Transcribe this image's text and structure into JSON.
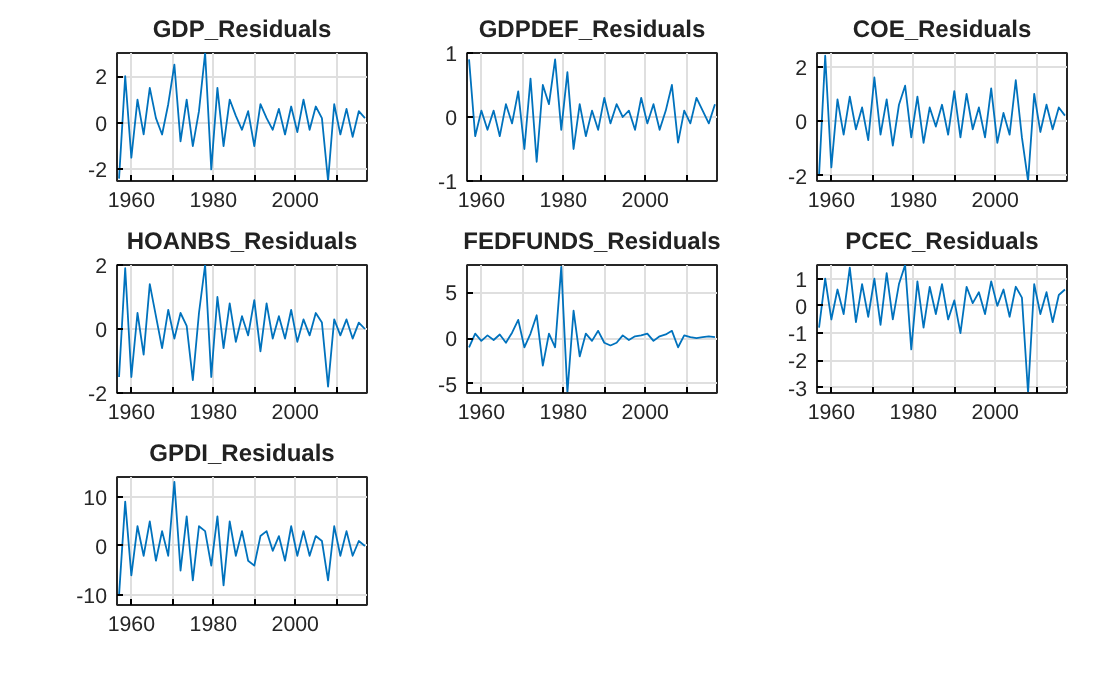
{
  "chart_data": [
    {
      "type": "line",
      "title": "GDP_Residuals",
      "x": [
        1957,
        1958.5,
        1960,
        1961.5,
        1963,
        1964.5,
        1966,
        1967.5,
        1969,
        1970.5,
        1972,
        1973.5,
        1975,
        1976.5,
        1978,
        1979.5,
        1981,
        1982.5,
        1984,
        1985.5,
        1987,
        1988.5,
        1990,
        1991.5,
        1993,
        1994.5,
        1996,
        1997.5,
        1999,
        2000.5,
        2002,
        2003.5,
        2005,
        2006.5,
        2008,
        2009.5,
        2011,
        2012.5,
        2014,
        2015.5,
        2017
      ],
      "series": [
        {
          "color": "#0072bd",
          "values": [
            -2.4,
            2,
            -1.5,
            1,
            -0.5,
            1.5,
            0.2,
            -0.5,
            0.8,
            2.5,
            -0.8,
            1,
            -1,
            0.5,
            3,
            -2,
            1.5,
            -1,
            1,
            0.3,
            -0.3,
            0.5,
            -1,
            0.8,
            0.2,
            -0.3,
            0.6,
            -0.5,
            0.7,
            -0.4,
            1,
            -0.3,
            0.7,
            0.2,
            -2.5,
            0.8,
            -0.5,
            0.6,
            -0.6,
            0.5,
            0.2
          ]
        }
      ],
      "xlim": [
        1956.5,
        2017.5
      ],
      "ylim": [
        -2.5,
        3
      ],
      "yticks": [
        -2,
        0,
        2
      ],
      "xticks": [
        1960,
        {
          "value": 1970,
          "label": null
        },
        1980,
        {
          "value": 1990,
          "label": null
        },
        2000,
        {
          "value": 2010,
          "label": null
        }
      ],
      "grid": true,
      "line_style": "solid",
      "marker": "none"
    },
    {
      "type": "line",
      "title": "GDPDEF_Residuals",
      "x": [
        1957,
        1958.5,
        1960,
        1961.5,
        1963,
        1964.5,
        1966,
        1967.5,
        1969,
        1970.5,
        1972,
        1973.5,
        1975,
        1976.5,
        1978,
        1979.5,
        1981,
        1982.5,
        1984,
        1985.5,
        1987,
        1988.5,
        1990,
        1991.5,
        1993,
        1994.5,
        1996,
        1997.5,
        1999,
        2000.5,
        2002,
        2003.5,
        2005,
        2006.5,
        2008,
        2009.5,
        2011,
        2012.5,
        2014,
        2015.5,
        2017
      ],
      "series": [
        {
          "color": "#0072bd",
          "values": [
            0.9,
            -0.3,
            0.1,
            -0.2,
            0.1,
            -0.3,
            0.2,
            -0.1,
            0.4,
            -0.5,
            0.6,
            -0.7,
            0.5,
            0.2,
            0.9,
            -0.2,
            0.7,
            -0.5,
            0.2,
            -0.3,
            0.1,
            -0.2,
            0.3,
            -0.1,
            0.2,
            0,
            0.1,
            -0.2,
            0.3,
            -0.1,
            0.2,
            -0.2,
            0.1,
            0.5,
            -0.4,
            0.1,
            -0.1,
            0.3,
            0.1,
            -0.1,
            0.2
          ]
        }
      ],
      "xlim": [
        1956.5,
        2017.5
      ],
      "ylim": [
        -1,
        1
      ],
      "yticks": [
        -1,
        0,
        1
      ],
      "xticks": [
        1960,
        {
          "value": 1970,
          "label": null
        },
        1980,
        {
          "value": 1990,
          "label": null
        },
        2000,
        {
          "value": 2010,
          "label": null
        }
      ],
      "grid": true,
      "line_style": "solid",
      "marker": "none"
    },
    {
      "type": "line",
      "title": "COE_Residuals",
      "x": [
        1957,
        1958.5,
        1960,
        1961.5,
        1963,
        1964.5,
        1966,
        1967.5,
        1969,
        1970.5,
        1972,
        1973.5,
        1975,
        1976.5,
        1978,
        1979.5,
        1981,
        1982.5,
        1984,
        1985.5,
        1987,
        1988.5,
        1990,
        1991.5,
        1993,
        1994.5,
        1996,
        1997.5,
        1999,
        2000.5,
        2002,
        2003.5,
        2005,
        2006.5,
        2008,
        2009.5,
        2011,
        2012.5,
        2014,
        2015.5,
        2017
      ],
      "series": [
        {
          "color": "#0072bd",
          "values": [
            -2,
            2.4,
            -1.7,
            0.8,
            -0.5,
            0.9,
            -0.3,
            0.5,
            -0.7,
            1.6,
            -0.5,
            0.8,
            -0.9,
            0.6,
            1.3,
            -0.6,
            0.9,
            -0.8,
            0.5,
            -0.2,
            0.6,
            -0.5,
            1.1,
            -0.6,
            1,
            -0.3,
            0.5,
            -0.6,
            1.2,
            -0.8,
            0.3,
            -0.5,
            1.5,
            -0.6,
            -2.2,
            1,
            -0.4,
            0.6,
            -0.3,
            0.5,
            0.2
          ]
        }
      ],
      "xlim": [
        1956.5,
        2017.5
      ],
      "ylim": [
        -2.2,
        2.5
      ],
      "yticks": [
        -2,
        0,
        2
      ],
      "xticks": [
        1960,
        {
          "value": 1970,
          "label": null
        },
        1980,
        {
          "value": 1990,
          "label": null
        },
        2000,
        {
          "value": 2010,
          "label": null
        }
      ],
      "grid": true,
      "line_style": "solid",
      "marker": "none"
    },
    {
      "type": "line",
      "title": "HOANBS_Residuals",
      "x": [
        1957,
        1958.5,
        1960,
        1961.5,
        1963,
        1964.5,
        1966,
        1967.5,
        1969,
        1970.5,
        1972,
        1973.5,
        1975,
        1976.5,
        1978,
        1979.5,
        1981,
        1982.5,
        1984,
        1985.5,
        1987,
        1988.5,
        1990,
        1991.5,
        1993,
        1994.5,
        1996,
        1997.5,
        1999,
        2000.5,
        2002,
        2003.5,
        2005,
        2006.5,
        2008,
        2009.5,
        2011,
        2012.5,
        2014,
        2015.5,
        2017
      ],
      "series": [
        {
          "color": "#0072bd",
          "values": [
            -1.5,
            1.9,
            -1.5,
            0.5,
            -0.8,
            1.4,
            0.4,
            -0.6,
            0.6,
            -0.3,
            0.5,
            0.1,
            -1.6,
            0.5,
            2,
            -1.5,
            1,
            -0.6,
            0.8,
            -0.4,
            0.4,
            -0.2,
            0.9,
            -0.7,
            0.8,
            -0.3,
            0.4,
            -0.3,
            0.6,
            -0.4,
            0.3,
            -0.2,
            0.5,
            0.2,
            -1.8,
            0.3,
            -0.2,
            0.3,
            -0.3,
            0.2,
            0
          ]
        }
      ],
      "xlim": [
        1956.5,
        2017.5
      ],
      "ylim": [
        -2,
        2
      ],
      "yticks": [
        -2,
        0,
        2
      ],
      "xticks": [
        1960,
        {
          "value": 1970,
          "label": null
        },
        1980,
        {
          "value": 1990,
          "label": null
        },
        2000,
        {
          "value": 2010,
          "label": null
        }
      ],
      "grid": true,
      "line_style": "solid",
      "marker": "none"
    },
    {
      "type": "line",
      "title": "FEDFUNDS_Residuals",
      "x": [
        1957,
        1958.5,
        1960,
        1961.5,
        1963,
        1964.5,
        1966,
        1967.5,
        1969,
        1970.5,
        1972,
        1973.5,
        1975,
        1976.5,
        1978,
        1979.5,
        1981,
        1982.5,
        1984,
        1985.5,
        1987,
        1988.5,
        1990,
        1991.5,
        1993,
        1994.5,
        1996,
        1997.5,
        1999,
        2000.5,
        2002,
        2003.5,
        2005,
        2006.5,
        2008,
        2009.5,
        2011,
        2012.5,
        2014,
        2015.5,
        2017
      ],
      "series": [
        {
          "color": "#0072bd",
          "values": [
            -1,
            0.5,
            -0.3,
            0.3,
            -0.2,
            0.4,
            -0.5,
            0.6,
            2,
            -1,
            0.5,
            2.5,
            -3,
            0.5,
            -1,
            7.8,
            -6,
            3,
            -2,
            0.5,
            -0.3,
            0.8,
            -0.5,
            -0.8,
            -0.5,
            0.3,
            -0.2,
            0.2,
            0.3,
            0.5,
            -0.3,
            0.2,
            0.4,
            0.8,
            -1,
            0.3,
            0.1,
            0,
            0.1,
            0.2,
            0.1
          ]
        }
      ],
      "xlim": [
        1956.5,
        2017.5
      ],
      "ylim": [
        -6,
        8
      ],
      "yticks": [
        -5,
        0,
        5
      ],
      "xticks": [
        1960,
        {
          "value": 1970,
          "label": null
        },
        1980,
        {
          "value": 1990,
          "label": null
        },
        2000,
        {
          "value": 2010,
          "label": null
        }
      ],
      "grid": true,
      "line_style": "solid",
      "marker": "none"
    },
    {
      "type": "line",
      "title": "PCEC_Residuals",
      "x": [
        1957,
        1958.5,
        1960,
        1961.5,
        1963,
        1964.5,
        1966,
        1967.5,
        1969,
        1970.5,
        1972,
        1973.5,
        1975,
        1976.5,
        1978,
        1979.5,
        1981,
        1982.5,
        1984,
        1985.5,
        1987,
        1988.5,
        1990,
        1991.5,
        1993,
        1994.5,
        1996,
        1997.5,
        1999,
        2000.5,
        2002,
        2003.5,
        2005,
        2006.5,
        2008,
        2009.5,
        2011,
        2012.5,
        2014,
        2015.5,
        2017
      ],
      "series": [
        {
          "color": "#0072bd",
          "values": [
            -0.8,
            1,
            -0.5,
            0.6,
            -0.3,
            1.4,
            -0.6,
            0.8,
            -0.4,
            1,
            -0.7,
            1.2,
            -0.5,
            0.8,
            1.5,
            -1.6,
            0.9,
            -0.8,
            0.7,
            -0.3,
            0.8,
            -0.5,
            0.2,
            -1,
            0.7,
            0.1,
            0.5,
            -0.3,
            0.9,
            0,
            0.6,
            -0.4,
            0.7,
            0.3,
            -3.2,
            0.8,
            -0.3,
            0.5,
            -0.6,
            0.4,
            0.6
          ]
        }
      ],
      "xlim": [
        1956.5,
        2017.5
      ],
      "ylim": [
        -3.2,
        1.5
      ],
      "yticks": [
        -3,
        -2,
        -1,
        0,
        1
      ],
      "xticks": [
        1960,
        {
          "value": 1970,
          "label": null
        },
        1980,
        {
          "value": 1990,
          "label": null
        },
        2000,
        {
          "value": 2010,
          "label": null
        }
      ],
      "grid": true,
      "line_style": "solid",
      "marker": "none"
    },
    {
      "type": "line",
      "title": "GPDI_Residuals",
      "x": [
        1957,
        1958.5,
        1960,
        1961.5,
        1963,
        1964.5,
        1966,
        1967.5,
        1969,
        1970.5,
        1972,
        1973.5,
        1975,
        1976.5,
        1978,
        1979.5,
        1981,
        1982.5,
        1984,
        1985.5,
        1987,
        1988.5,
        1990,
        1991.5,
        1993,
        1994.5,
        1996,
        1997.5,
        1999,
        2000.5,
        2002,
        2003.5,
        2005,
        2006.5,
        2008,
        2009.5,
        2011,
        2012.5,
        2014,
        2015.5,
        2017
      ],
      "series": [
        {
          "color": "#0072bd",
          "values": [
            -10,
            9,
            -6,
            4,
            -2,
            5,
            -3,
            3,
            -2,
            13,
            -5,
            6,
            -7,
            4,
            3,
            -4,
            6,
            -8,
            5,
            -2,
            3,
            -3,
            -4,
            2,
            3,
            -1,
            2,
            -3,
            4,
            -2,
            3,
            -2,
            2,
            1,
            -7,
            4,
            -2,
            3,
            -2,
            1,
            0
          ]
        }
      ],
      "xlim": [
        1956.5,
        2017.5
      ],
      "ylim": [
        -12,
        14
      ],
      "yticks": [
        -10,
        0,
        10
      ],
      "xticks": [
        1960,
        {
          "value": 1970,
          "label": null
        },
        1980,
        {
          "value": 1990,
          "label": null
        },
        2000,
        {
          "value": 2010,
          "label": null
        }
      ],
      "grid": true,
      "line_style": "solid",
      "marker": "none"
    }
  ]
}
